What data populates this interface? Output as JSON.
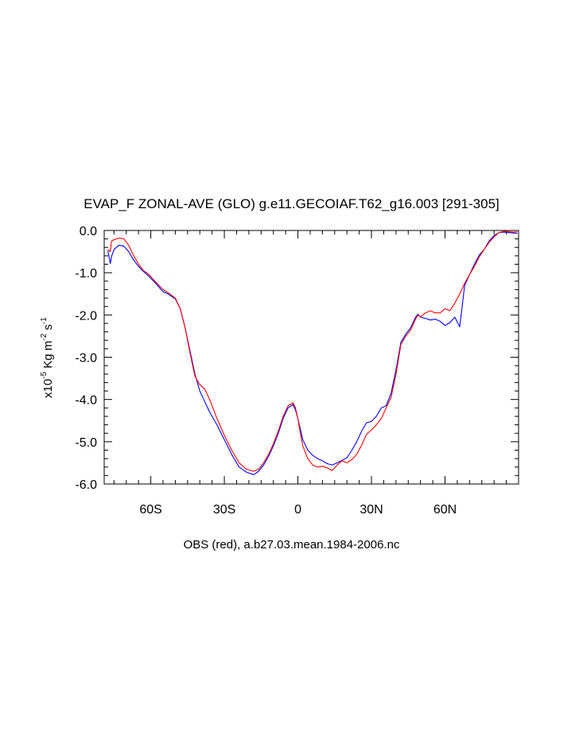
{
  "chart_data": {
    "type": "line",
    "title": "EVAP_F ZONAL-AVE (GLO) g.e11.GECOIAF.T62_g16.003 [291-305]",
    "xlabel": "OBS (red), a.b27.03.mean.1984-2006.nc",
    "ylabel": {
      "prefix": "x10",
      "exp1": "-5",
      "mid": " Kg m",
      "exp2": "-2",
      "mid2": " s",
      "exp3": "-1"
    },
    "xlim": [
      -79,
      90
    ],
    "ylim": [
      -6.0,
      0.0
    ],
    "xticks": [
      {
        "value": -60,
        "label": "60S"
      },
      {
        "value": -30,
        "label": "30S"
      },
      {
        "value": 0,
        "label": "0"
      },
      {
        "value": 30,
        "label": "30N"
      },
      {
        "value": 60,
        "label": "60N"
      }
    ],
    "yticks": [
      {
        "value": 0.0,
        "label": "0.0"
      },
      {
        "value": -1.0,
        "label": "-1.0"
      },
      {
        "value": -2.0,
        "label": "-2.0"
      },
      {
        "value": -3.0,
        "label": "-3.0"
      },
      {
        "value": -4.0,
        "label": "-4.0"
      },
      {
        "value": -5.0,
        "label": "-5.0"
      },
      {
        "value": -6.0,
        "label": "-6.0"
      }
    ],
    "series": [
      {
        "name": "g.e11.GECOIAF.T62_g16.003",
        "color": "#0000ff",
        "x": [
          -77.5,
          -76.5,
          -76,
          -75,
          -73,
          -71,
          -69,
          -67,
          -65,
          -63,
          -61,
          -58,
          -55,
          -53,
          -50,
          -48,
          -46,
          -44,
          -42,
          -40,
          -38,
          -36,
          -33,
          -30,
          -27,
          -24,
          -21,
          -18,
          -16,
          -14,
          -12,
          -10,
          -8,
          -6,
          -4,
          -2,
          -1,
          0,
          1,
          2,
          4,
          6,
          8,
          10,
          12,
          14,
          16,
          18,
          20,
          22,
          24,
          26,
          28,
          30,
          32,
          34,
          36,
          38,
          40,
          42,
          44,
          46,
          48,
          49,
          50,
          52,
          54,
          56,
          58,
          60,
          62,
          64,
          66,
          68,
          70,
          72,
          74,
          76,
          78,
          80,
          82,
          84,
          86,
          88,
          89.5
        ],
        "y": [
          -0.48,
          -0.78,
          -0.62,
          -0.45,
          -0.35,
          -0.37,
          -0.5,
          -0.7,
          -0.85,
          -0.97,
          -1.07,
          -1.25,
          -1.45,
          -1.5,
          -1.62,
          -1.85,
          -2.3,
          -2.85,
          -3.4,
          -3.8,
          -4.05,
          -4.3,
          -4.6,
          -4.95,
          -5.3,
          -5.6,
          -5.72,
          -5.78,
          -5.7,
          -5.55,
          -5.35,
          -5.1,
          -4.8,
          -4.45,
          -4.2,
          -4.12,
          -4.25,
          -4.45,
          -4.7,
          -4.95,
          -5.2,
          -5.32,
          -5.4,
          -5.45,
          -5.52,
          -5.55,
          -5.5,
          -5.44,
          -5.38,
          -5.2,
          -5.0,
          -4.75,
          -4.55,
          -4.52,
          -4.4,
          -4.2,
          -4.15,
          -3.85,
          -3.3,
          -2.65,
          -2.45,
          -2.3,
          -2.05,
          -1.98,
          -2.05,
          -2.08,
          -2.12,
          -2.1,
          -2.15,
          -2.25,
          -2.18,
          -2.05,
          -2.28,
          -1.3,
          -1.05,
          -0.8,
          -0.58,
          -0.45,
          -0.25,
          -0.12,
          -0.05,
          -0.04,
          -0.05,
          -0.06,
          -0.07
        ]
      },
      {
        "name": "OBS",
        "color": "#ff0000",
        "x": [
          -77.5,
          -76.5,
          -76,
          -75,
          -73,
          -71,
          -69,
          -67,
          -65,
          -63,
          -61,
          -58,
          -55,
          -53,
          -50,
          -48,
          -46,
          -44,
          -42,
          -40,
          -38,
          -36,
          -33,
          -30,
          -27,
          -24,
          -21,
          -18,
          -16,
          -14,
          -12,
          -10,
          -8,
          -6,
          -4,
          -2,
          -1,
          0,
          1,
          2,
          4,
          6,
          8,
          10,
          12,
          14,
          16,
          18,
          20,
          22,
          24,
          26,
          28,
          30,
          32,
          34,
          36,
          38,
          40,
          42,
          44,
          46,
          48,
          49,
          50,
          52,
          54,
          56,
          58,
          60,
          62,
          64,
          66,
          68,
          70,
          72,
          74,
          76,
          78,
          80,
          82,
          84,
          86,
          88,
          89.5
        ],
        "y": [
          -0.45,
          -0.5,
          -0.25,
          -0.22,
          -0.18,
          -0.2,
          -0.35,
          -0.6,
          -0.8,
          -0.95,
          -1.03,
          -1.22,
          -1.4,
          -1.47,
          -1.6,
          -1.85,
          -2.3,
          -2.9,
          -3.45,
          -3.65,
          -3.75,
          -4.0,
          -4.45,
          -4.85,
          -5.2,
          -5.5,
          -5.65,
          -5.7,
          -5.65,
          -5.5,
          -5.3,
          -5.05,
          -4.75,
          -4.4,
          -4.15,
          -4.08,
          -4.2,
          -4.45,
          -4.8,
          -5.1,
          -5.4,
          -5.55,
          -5.6,
          -5.58,
          -5.62,
          -5.68,
          -5.55,
          -5.45,
          -5.5,
          -5.42,
          -5.3,
          -5.08,
          -4.82,
          -4.72,
          -4.6,
          -4.45,
          -4.2,
          -3.95,
          -3.4,
          -2.7,
          -2.5,
          -2.35,
          -2.1,
          -2.0,
          -2.05,
          -1.95,
          -1.9,
          -1.95,
          -1.95,
          -1.85,
          -1.9,
          -1.72,
          -1.5,
          -1.25,
          -1.05,
          -0.85,
          -0.62,
          -0.45,
          -0.28,
          -0.15,
          -0.05,
          -0.02,
          -0.03,
          -0.04,
          -0.03
        ]
      }
    ]
  }
}
